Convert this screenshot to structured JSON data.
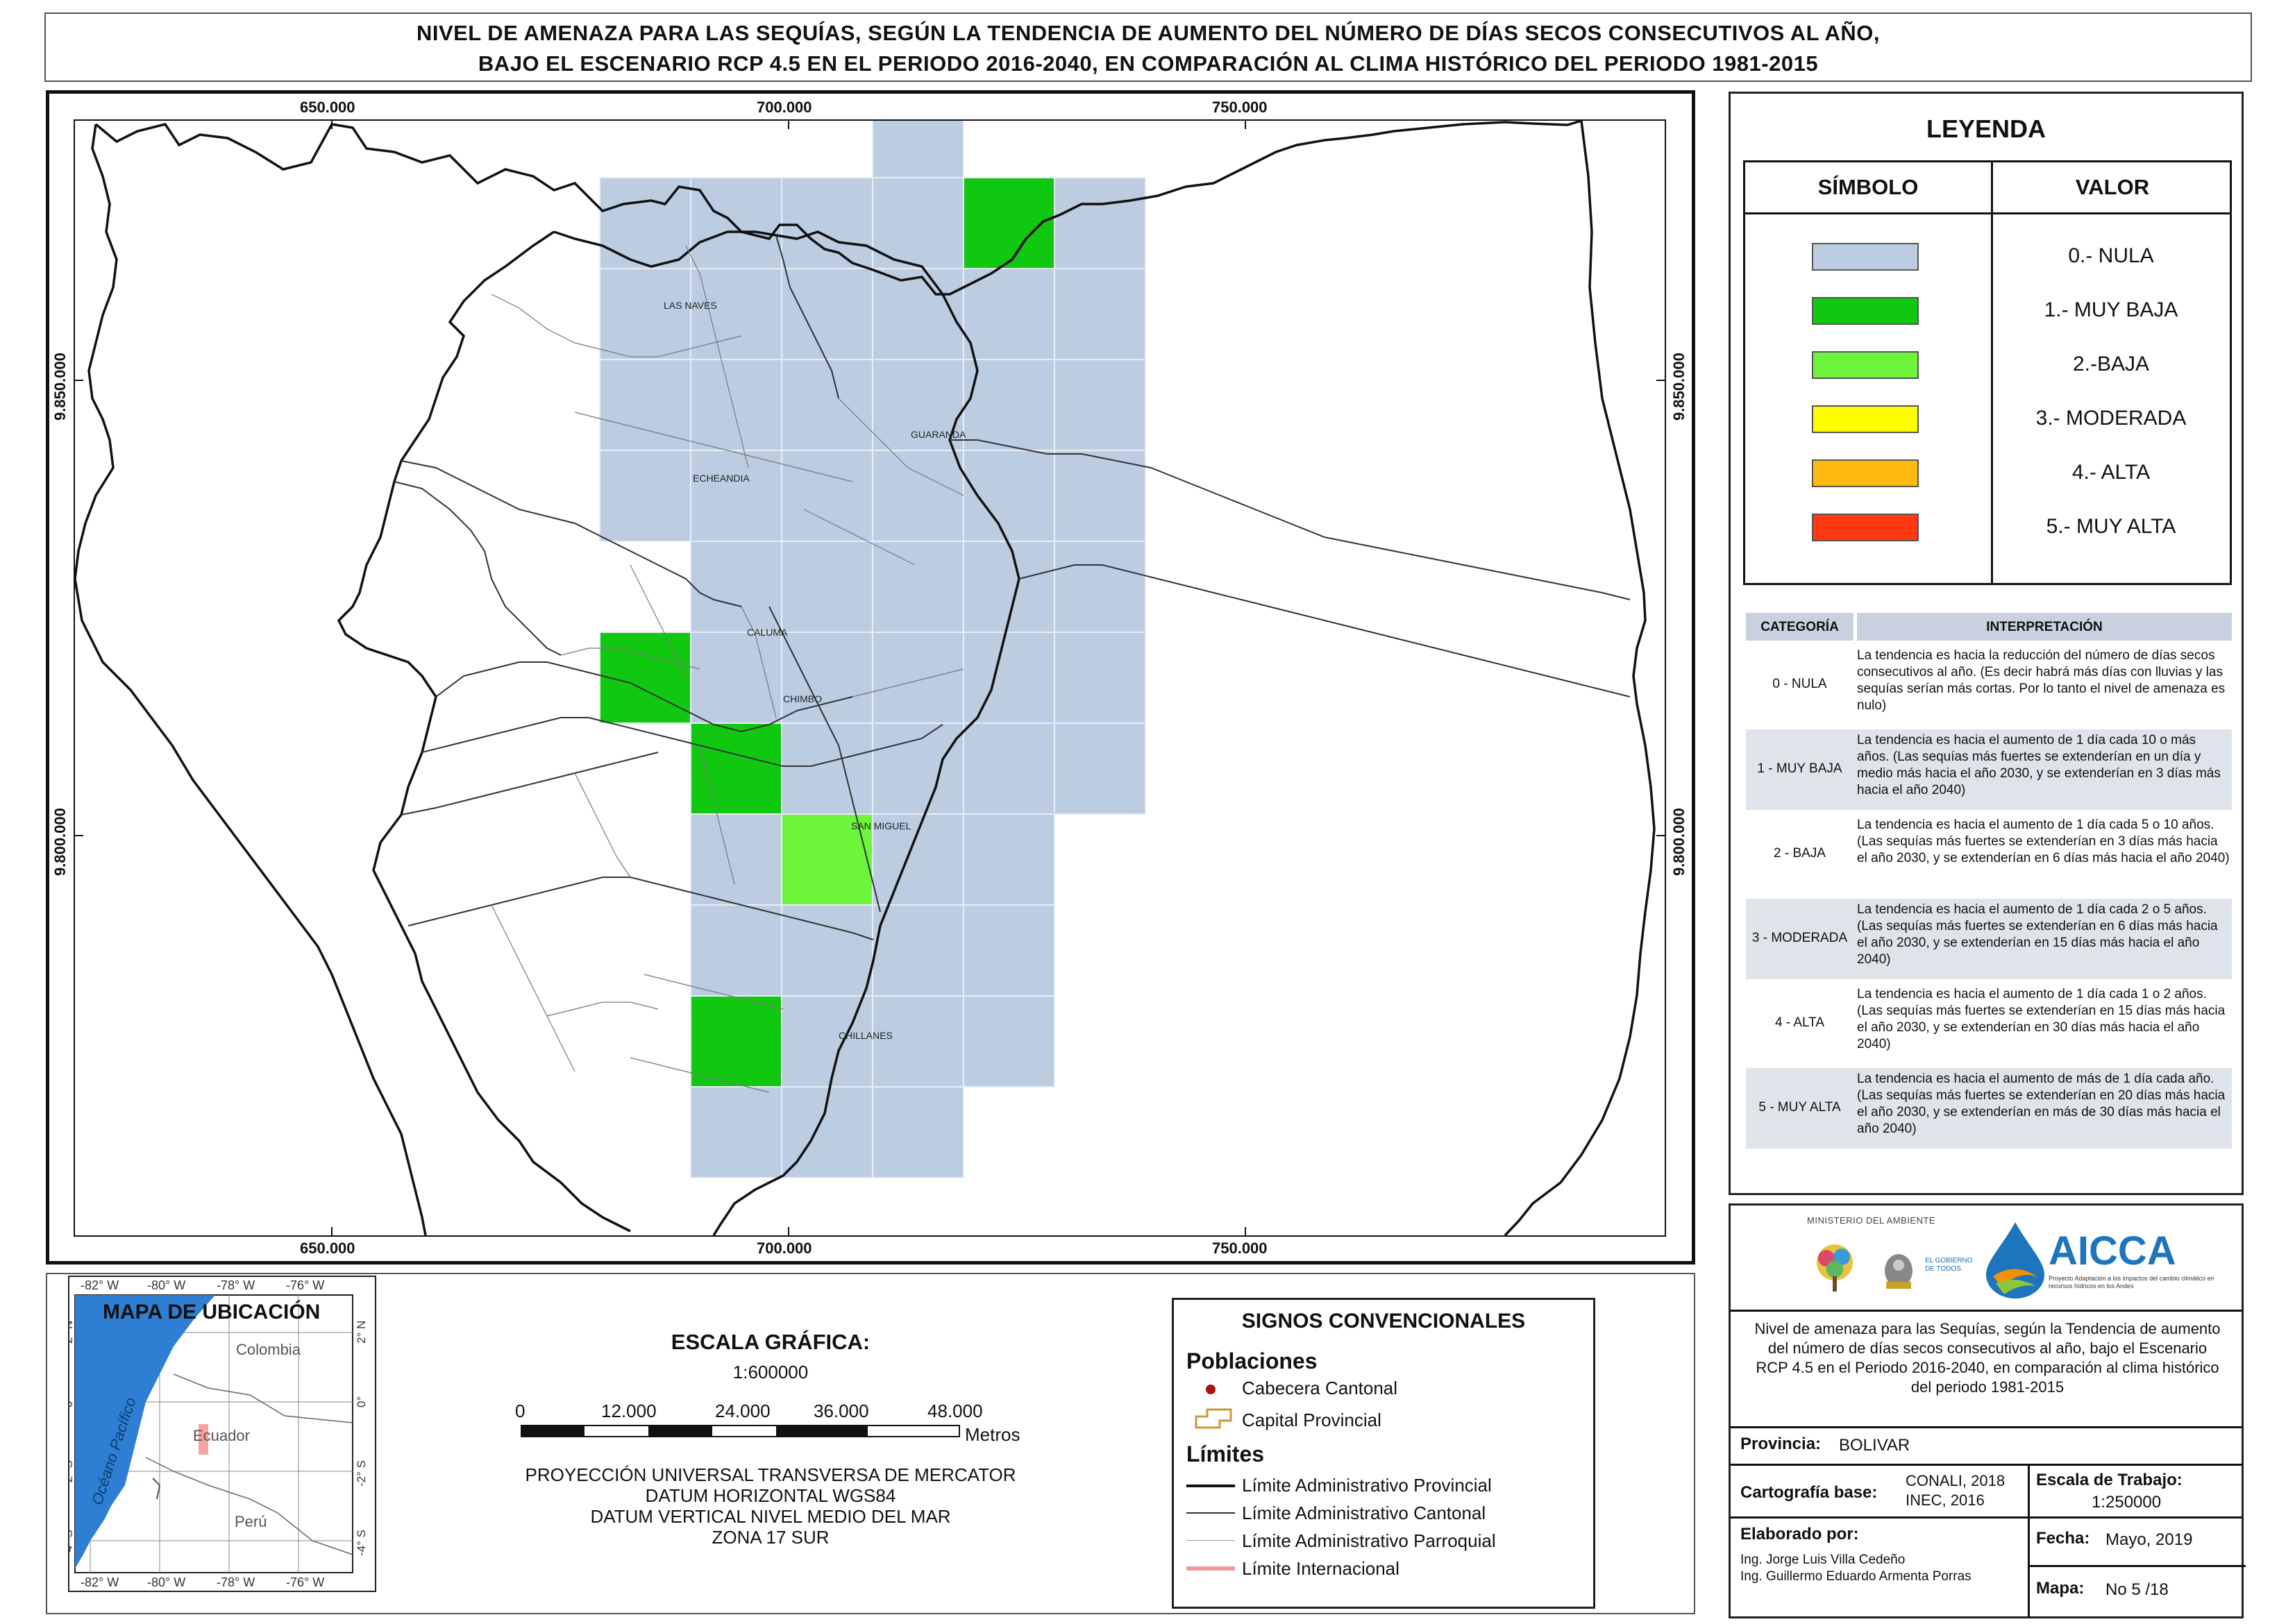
{
  "title": {
    "line1": "NIVEL DE AMENAZA PARA LAS SEQUÍAS, SEGÚN LA TENDENCIA DE AUMENTO DEL NÚMERO DE DÍAS SECOS CONSECUTIVOS AL AÑO,",
    "line2": "BAJO EL ESCENARIO RCP 4.5 EN EL PERIODO 2016-2040, EN COMPARACIÓN AL CLIMA HISTÓRICO DEL PERIODO 1981-2015"
  },
  "map": {
    "x_ticks": [
      "650.000",
      "700.000",
      "750.000"
    ],
    "y_ticks": [
      "9.850.000",
      "9.800.000"
    ],
    "places": {
      "las_naves": "LAS NAVES",
      "guaranda": "GUARANDA",
      "echeandia": "ECHEANDIA",
      "caluma": "CALUMA",
      "chimbo": "CHIMBO",
      "san_miguel": "SAN MIGUEL",
      "chillanes": "CHILLANES"
    },
    "colors": {
      "nula": "#bccde2",
      "muy_baja": "#10c810",
      "baja": "#6cf53c",
      "moderada": "#ffff00",
      "alta": "#ffb90f",
      "muy_alta": "#ff3810"
    }
  },
  "legend": {
    "title": "LEYENDA",
    "col_symbol": "SÍMBOLO",
    "col_value": "VALOR",
    "items": [
      {
        "label": "0.- NULA",
        "color": "#bccde2"
      },
      {
        "label": "1.- MUY BAJA",
        "color": "#10c810"
      },
      {
        "label": "2.-BAJA",
        "color": "#6cf53c"
      },
      {
        "label": "3.- MODERADA",
        "color": "#ffff00"
      },
      {
        "label": "4.- ALTA",
        "color": "#ffb90f"
      },
      {
        "label": "5.- MUY ALTA",
        "color": "#ff3810"
      }
    ],
    "cat_header": "CATEGORÍA",
    "interp_header": "INTERPRETACIÓN",
    "categories": [
      {
        "cat": "0 - NULA",
        "text": "La tendencia es hacia la reducción del número de días secos consecutivos al año. (Es decir habrá más días con lluvias y las sequías serían más cortas. Por lo tanto el nivel de amenaza es nulo)"
      },
      {
        "cat": "1 - MUY BAJA",
        "text": "La tendencia es hacia el aumento de 1 día cada 10 o más años. (Las sequías más fuertes se extenderían en un día y medio más hacia el año 2030, y se extenderían en 3 días más hacia el año 2040)"
      },
      {
        "cat": "2 - BAJA",
        "text": "La tendencia es hacia el aumento de 1 día cada 5 o 10 años. (Las sequías más fuertes se extenderían en 3 días más hacia el año 2030, y se extenderían en 6 días más hacia el año 2040)"
      },
      {
        "cat": "3 - MODERADA",
        "text": "La tendencia es hacia el aumento de 1 día cada 2 o 5 años. (Las sequías más fuertes se extenderían en 6 días más hacia el año 2030, y se extenderían en 15 días más hacia el año 2040)"
      },
      {
        "cat": "4 - ALTA",
        "text": "La tendencia es hacia el aumento de 1 día cada 1 o 2 años. (Las sequías más fuertes se extenderían en 15 días más hacia el año 2030, y se extenderían en 30 días más hacia el año 2040)"
      },
      {
        "cat": "5 - MUY ALTA",
        "text": "La tendencia es hacia el aumento de más de 1 día cada año. (Las sequías más fuertes se extenderían en 20 días más hacia el año 2030, y se extenderían en más de 30 días más hacia el año 2040)"
      }
    ]
  },
  "info": {
    "ministerio": "MINISTERIO DEL AMBIENTE",
    "gobierno": "EL GOBIERNO DE TODOS",
    "aicca": "AICCA",
    "aicca_sub": "Proyecto Adaptación a los impactos del cambio climático en recursos hídricos en los Andes",
    "description": "Nivel de amenaza para las Sequías, según la Tendencia de aumento del número de días secos consecutivos al año, bajo el Escenario RCP 4.5 en el Periodo 2016-2040, en comparación al clima histórico del periodo 1981-2015",
    "provincia_label": "Provincia:",
    "provincia_value": "BOLIVAR",
    "cartografia_label": "Cartografía base:",
    "cartografia_value1": "CONALI, 2018",
    "cartografia_value2": "INEC, 2016",
    "escala_label": "Escala de Trabajo:",
    "escala_value": "1:250000",
    "elaborado_label": "Elaborado por:",
    "elaborado_1": "Ing. Jorge Luis Villa Cedeño",
    "elaborado_2": "Ing. Guillermo Eduardo Armenta Porras",
    "fecha_label": "Fecha:",
    "fecha_value": "Mayo, 2019",
    "mapa_label": "Mapa:",
    "mapa_value": "No 5 /18"
  },
  "locator": {
    "title": "MAPA DE UBICACIÓN",
    "top_ticks": [
      "-82° W",
      "-80° W",
      "-78° W",
      "-76° W"
    ],
    "bottom_ticks": [
      "-82° W",
      "-80° W",
      "-78° W",
      "-76° W"
    ],
    "side_ticks": [
      "2° N",
      "0°",
      "-2° S",
      "-4° S"
    ],
    "colombia": "Colombia",
    "ecuador": "Ecuador",
    "peru": "Perú",
    "ocean": "Océano Pacífico"
  },
  "scale": {
    "title": "ESCALA GRÁFICA:",
    "ratio": "1:600000",
    "ticks": [
      "0",
      "12.000",
      "24.000",
      "36.000",
      "48.000"
    ],
    "unit": "Metros",
    "proj1": "PROYECCIÓN UNIVERSAL TRANSVERSA DE MERCATOR",
    "proj2": "DATUM HORIZONTAL WGS84",
    "proj3": "DATUM VERTICAL NIVEL MEDIO DEL MAR",
    "proj4": "ZONA 17 SUR"
  },
  "signs": {
    "title": "SIGNOS CONVENCIONALES",
    "poblaciones": "Poblaciones",
    "cabecera": "Cabecera Cantonal",
    "capital": "Capital Provincial",
    "limites": "Límites",
    "lim_prov": "Límite Administrativo Provincial",
    "lim_cant": "Límite Administrativo Cantonal",
    "lim_parr": "Límite Administrativo Parroquial",
    "lim_int": "Límite Internacional"
  }
}
